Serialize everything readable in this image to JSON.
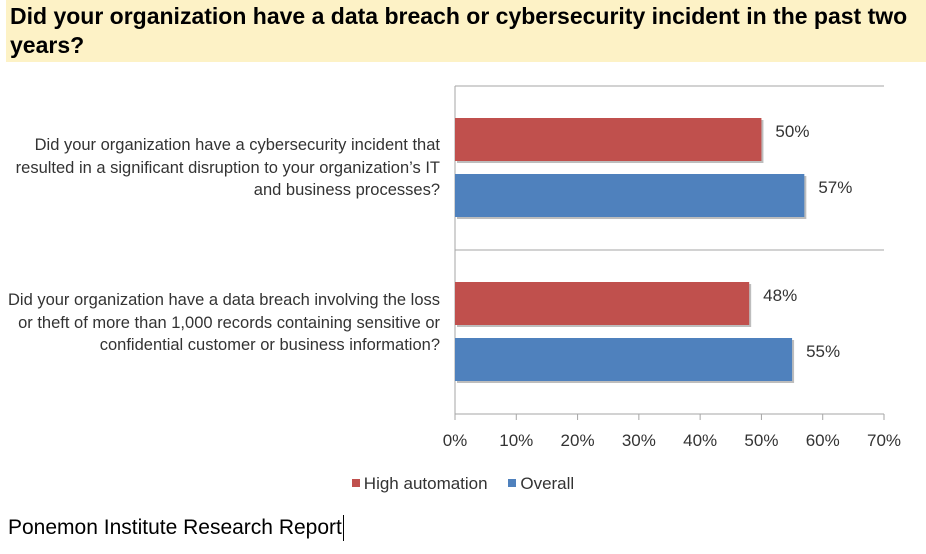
{
  "title": "Did your organization have a data breach or cybersecurity incident in the past two years?",
  "source": "Ponemon Institute Research Report",
  "chart_data": {
    "type": "bar",
    "orientation": "horizontal",
    "categories": [
      "Did your organization have a cybersecurity incident that resulted in a significant disruption to your organization’s IT and business processes?",
      "Did your organization have a data breach involving the loss or theft of more than 1,000 records containing sensitive or confidential customer or business information?"
    ],
    "series": [
      {
        "name": "High automation",
        "values": [
          50,
          48
        ],
        "labels": [
          "50%",
          "48%"
        ],
        "color": "#c0504d"
      },
      {
        "name": "Overall",
        "values": [
          57,
          55
        ],
        "labels": [
          "57%",
          "55%"
        ],
        "color": "#4f81bd"
      }
    ],
    "xlim": [
      0,
      70
    ],
    "xticks": [
      "0%",
      "10%",
      "20%",
      "30%",
      "40%",
      "50%",
      "60%",
      "70%"
    ],
    "legend_position": "bottom",
    "grid": false
  }
}
